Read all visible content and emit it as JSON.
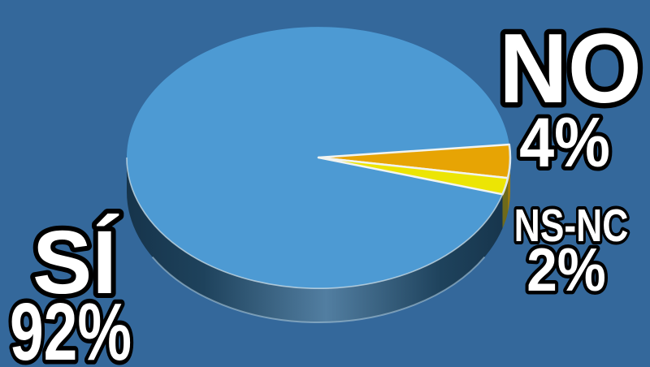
{
  "chart_data": {
    "type": "pie",
    "style": "3d-extruded",
    "title": "",
    "labels": [
      "SÍ",
      "NO",
      "NS-NC"
    ],
    "values": [
      92,
      4,
      2
    ],
    "unit": "%",
    "display_values": [
      "92%",
      "4%",
      "2%"
    ],
    "colors": [
      "#4d9ad3",
      "#e7a404",
      "#ece504"
    ],
    "side_colors": [
      "#2c5a7c",
      "#a07c08",
      "#6f6a1a"
    ],
    "background_color": "#34689b",
    "separator_color": "#f2f4f0",
    "label_text_color": "#ffffff",
    "label_outline_color": "#000000",
    "start_angle_deg": -5.7,
    "legend_position": "labels-around-pie",
    "grid": false
  },
  "labels": {
    "si": {
      "name": "SÍ",
      "value": "92%"
    },
    "no": {
      "name": "NO",
      "value": "4%"
    },
    "nsnc": {
      "name": "NS-NC",
      "value": "2%"
    }
  }
}
